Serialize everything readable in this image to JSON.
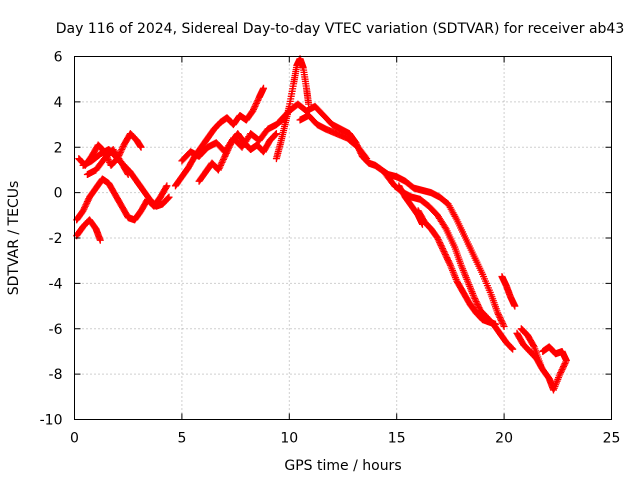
{
  "chart_data": {
    "type": "scatter",
    "title": "Day 116 of 2024, Sidereal Day-to-day VTEC variation (SDTVAR) for receiver ab43",
    "xlabel": "GPS time / hours",
    "ylabel": "SDTVAR / TECUs",
    "xlim": [
      0,
      25
    ],
    "ylim": [
      -10,
      6
    ],
    "xticks": [
      0,
      5,
      10,
      15,
      20,
      25
    ],
    "yticks": [
      -10,
      -8,
      -6,
      -4,
      -2,
      0,
      2,
      4,
      6
    ],
    "grid": true,
    "marker": "+",
    "series": [
      {
        "name": "SDTVAR",
        "color": "#ff0000",
        "tracks": [
          [
            [
              0.2,
              1.5
            ],
            [
              0.5,
              1.2
            ],
            [
              0.8,
              1.6
            ],
            [
              1.1,
              2.1
            ],
            [
              1.4,
              1.8
            ],
            [
              1.7,
              1.2
            ],
            [
              2.0,
              1.5
            ],
            [
              2.3,
              2.1
            ],
            [
              2.6,
              2.6
            ],
            [
              2.9,
              2.3
            ],
            [
              3.1,
              2.0
            ]
          ],
          [
            [
              0.4,
              1.2
            ],
            [
              0.8,
              1.4
            ],
            [
              1.2,
              1.7
            ],
            [
              1.6,
              1.9
            ],
            [
              2.0,
              1.5
            ],
            [
              2.3,
              1.2
            ],
            [
              2.6,
              0.9
            ],
            [
              2.9,
              0.5
            ],
            [
              3.2,
              0.1
            ],
            [
              3.5,
              -0.3
            ],
            [
              3.8,
              -0.6
            ],
            [
              4.1,
              -0.5
            ],
            [
              4.4,
              -0.2
            ]
          ],
          [
            [
              0.1,
              -1.2
            ],
            [
              0.4,
              -0.8
            ],
            [
              0.7,
              -0.2
            ],
            [
              1.0,
              0.2
            ],
            [
              1.3,
              0.6
            ],
            [
              1.6,
              0.4
            ],
            [
              1.9,
              -0.1
            ],
            [
              2.2,
              -0.6
            ],
            [
              2.5,
              -1.1
            ],
            [
              2.8,
              -1.2
            ],
            [
              3.1,
              -0.8
            ],
            [
              3.4,
              -0.3
            ],
            [
              3.7,
              -0.6
            ],
            [
              4.0,
              -0.2
            ],
            [
              4.3,
              0.3
            ]
          ],
          [
            [
              0.1,
              -1.9
            ],
            [
              0.4,
              -1.5
            ],
            [
              0.7,
              -1.2
            ],
            [
              1.0,
              -1.6
            ],
            [
              1.2,
              -2.1
            ]
          ],
          [
            [
              0.6,
              0.8
            ],
            [
              1.0,
              1.0
            ],
            [
              1.4,
              1.5
            ],
            [
              1.8,
              1.9
            ],
            [
              2.2,
              1.3
            ],
            [
              2.5,
              0.8
            ]
          ],
          [
            [
              4.7,
              0.3
            ],
            [
              5.0,
              0.7
            ],
            [
              5.3,
              1.1
            ],
            [
              5.6,
              1.6
            ],
            [
              5.9,
              2.0
            ],
            [
              6.2,
              2.4
            ],
            [
              6.5,
              2.8
            ],
            [
              6.8,
              3.1
            ],
            [
              7.1,
              3.3
            ],
            [
              7.4,
              3.0
            ],
            [
              7.7,
              3.4
            ],
            [
              8.0,
              3.2
            ],
            [
              8.3,
              3.6
            ],
            [
              8.6,
              4.2
            ],
            [
              8.8,
              4.6
            ]
          ],
          [
            [
              5.0,
              1.4
            ],
            [
              5.4,
              1.8
            ],
            [
              5.8,
              1.6
            ],
            [
              6.2,
              2.0
            ],
            [
              6.6,
              2.2
            ],
            [
              7.0,
              1.8
            ],
            [
              7.4,
              2.4
            ],
            [
              7.8,
              2.0
            ],
            [
              8.2,
              2.6
            ],
            [
              8.6,
              2.3
            ],
            [
              9.0,
              2.8
            ],
            [
              9.4,
              3.0
            ],
            [
              9.8,
              3.3
            ]
          ],
          [
            [
              5.8,
              0.5
            ],
            [
              6.1,
              0.9
            ],
            [
              6.4,
              1.3
            ],
            [
              6.7,
              1.0
            ],
            [
              7.0,
              1.6
            ],
            [
              7.3,
              2.2
            ],
            [
              7.6,
              2.6
            ],
            [
              7.9,
              2.2
            ],
            [
              8.2,
              1.9
            ],
            [
              8.5,
              2.1
            ],
            [
              8.8,
              1.8
            ],
            [
              9.1,
              2.3
            ],
            [
              9.4,
              2.6
            ]
          ],
          [
            [
              9.4,
              1.5
            ],
            [
              9.6,
              2.2
            ],
            [
              9.8,
              3.0
            ],
            [
              10.0,
              3.8
            ],
            [
              10.2,
              4.8
            ],
            [
              10.35,
              5.6
            ],
            [
              10.5,
              5.9
            ],
            [
              10.65,
              5.5
            ],
            [
              10.8,
              4.6
            ],
            [
              10.9,
              3.9
            ]
          ],
          [
            [
              9.6,
              3.2
            ],
            [
              10.0,
              3.6
            ],
            [
              10.4,
              3.9
            ],
            [
              10.8,
              3.6
            ],
            [
              11.2,
              3.8
            ],
            [
              11.6,
              3.4
            ],
            [
              12.0,
              3.0
            ],
            [
              12.4,
              2.8
            ],
            [
              12.8,
              2.6
            ],
            [
              13.1,
              2.2
            ],
            [
              13.4,
              1.6
            ],
            [
              13.7,
              1.3
            ],
            [
              14.0,
              1.2
            ],
            [
              14.3,
              1.0
            ],
            [
              14.6,
              0.8
            ],
            [
              15.0,
              0.7
            ],
            [
              15.4,
              0.5
            ],
            [
              15.8,
              0.2
            ],
            [
              16.2,
              0.1
            ],
            [
              16.6,
              0.0
            ],
            [
              17.0,
              -0.2
            ],
            [
              17.4,
              -0.5
            ],
            [
              17.8,
              -1.2
            ],
            [
              18.2,
              -2.0
            ],
            [
              18.6,
              -2.8
            ],
            [
              19.0,
              -3.6
            ],
            [
              19.4,
              -4.5
            ],
            [
              19.7,
              -5.3
            ],
            [
              20.0,
              -5.9
            ]
          ],
          [
            [
              10.5,
              3.2
            ],
            [
              10.9,
              3.4
            ],
            [
              11.3,
              3.0
            ],
            [
              11.7,
              2.8
            ],
            [
              12.2,
              2.6
            ],
            [
              12.7,
              2.4
            ],
            [
              13.2,
              2.0
            ],
            [
              13.6,
              1.5
            ]
          ],
          [
            [
              14.5,
              0.8
            ],
            [
              14.9,
              0.3
            ],
            [
              15.3,
              0.0
            ],
            [
              15.7,
              -0.2
            ],
            [
              16.1,
              -0.3
            ],
            [
              16.5,
              -0.6
            ],
            [
              16.9,
              -1.0
            ],
            [
              17.3,
              -1.6
            ],
            [
              17.7,
              -2.4
            ],
            [
              18.0,
              -3.2
            ],
            [
              18.3,
              -3.9
            ],
            [
              18.6,
              -4.6
            ],
            [
              18.9,
              -5.2
            ],
            [
              19.2,
              -5.5
            ],
            [
              19.5,
              -5.8
            ],
            [
              19.8,
              -6.2
            ],
            [
              20.1,
              -6.6
            ],
            [
              20.4,
              -6.9
            ]
          ],
          [
            [
              16.0,
              -0.8
            ],
            [
              16.3,
              -1.3
            ],
            [
              16.6,
              -1.6
            ],
            [
              16.9,
              -2.0
            ],
            [
              17.2,
              -2.6
            ],
            [
              17.5,
              -3.2
            ],
            [
              17.8,
              -3.9
            ],
            [
              18.1,
              -4.4
            ],
            [
              18.4,
              -4.9
            ],
            [
              18.7,
              -5.3
            ],
            [
              19.0,
              -5.6
            ],
            [
              19.3,
              -5.7
            ],
            [
              19.6,
              -5.8
            ]
          ],
          [
            [
              15.1,
              0.3
            ],
            [
              15.4,
              -0.2
            ],
            [
              15.7,
              -0.6
            ],
            [
              16.0,
              -1.0
            ],
            [
              16.2,
              -1.4
            ]
          ],
          [
            [
              20.6,
              -6.2
            ],
            [
              20.9,
              -6.7
            ],
            [
              21.2,
              -7.0
            ],
            [
              21.5,
              -7.3
            ],
            [
              21.8,
              -7.8
            ],
            [
              22.1,
              -8.2
            ],
            [
              22.3,
              -8.7
            ],
            [
              22.6,
              -8.0
            ],
            [
              22.9,
              -7.4
            ],
            [
              22.7,
              -7.0
            ],
            [
              22.4,
              -7.1
            ],
            [
              22.1,
              -6.8
            ],
            [
              21.8,
              -7.0
            ]
          ],
          [
            [
              20.8,
              -6.0
            ],
            [
              21.1,
              -6.3
            ],
            [
              21.4,
              -6.8
            ],
            [
              21.7,
              -7.6
            ]
          ],
          [
            [
              19.9,
              -3.7
            ],
            [
              20.1,
              -4.1
            ],
            [
              20.3,
              -4.6
            ],
            [
              20.5,
              -5.0
            ]
          ]
        ]
      }
    ]
  }
}
